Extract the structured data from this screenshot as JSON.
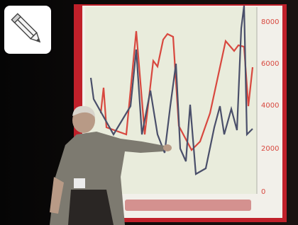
{
  "screen": {
    "right_axis_labels": [
      "8000",
      "6000",
      "4000",
      "2000",
      "0"
    ]
  }
}
